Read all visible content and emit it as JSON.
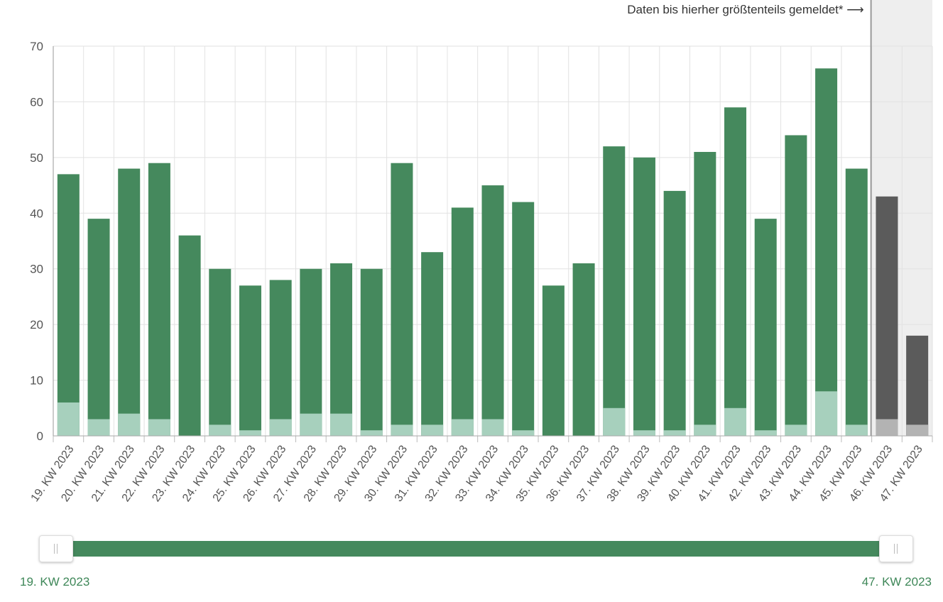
{
  "annotation": "Daten bis hierher größtenteils gemeldet* ⟶",
  "range": {
    "start": "19. KW 2023",
    "end": "47. KW 2023"
  },
  "colors": {
    "dark_green": "#45895d",
    "light_green": "#a7d0bd",
    "dark_gray": "#5b5b5b",
    "light_gray": "#b3b3b3",
    "shade": "#eeeeee",
    "grid": "#e2e2e2"
  },
  "chart_data": {
    "type": "bar",
    "stacked": true,
    "categories": [
      "19. KW 2023",
      "20. KW 2023",
      "21. KW 2023",
      "22. KW 2023",
      "23. KW 2023",
      "24. KW 2023",
      "25. KW 2023",
      "26. KW 2023",
      "27. KW 2023",
      "28. KW 2023",
      "29. KW 2023",
      "30. KW 2023",
      "31. KW 2023",
      "32. KW 2023",
      "33. KW 2023",
      "34. KW 2023",
      "35. KW 2023",
      "36. KW 2023",
      "37. KW 2023",
      "38. KW 2023",
      "39. KW 2023",
      "40. KW 2023",
      "41. KW 2023",
      "42. KW 2023",
      "43. KW 2023",
      "44. KW 2023",
      "45. KW 2023",
      "46. KW 2023",
      "47. KW 2023"
    ],
    "totals": [
      47,
      39,
      48,
      49,
      36,
      30,
      27,
      28,
      30,
      31,
      30,
      49,
      33,
      41,
      45,
      42,
      27,
      31,
      52,
      50,
      44,
      51,
      59,
      39,
      54,
      66,
      48,
      43,
      18
    ],
    "lower_values": [
      6,
      3,
      4,
      3,
      0,
      2,
      1,
      3,
      4,
      4,
      1,
      2,
      2,
      3,
      3,
      1,
      0,
      0,
      5,
      1,
      1,
      2,
      5,
      1,
      2,
      8,
      2,
      3,
      2
    ],
    "incomplete_from_index": 27,
    "ylim": [
      0,
      70
    ],
    "yticks": [
      0,
      10,
      20,
      30,
      40,
      50,
      60,
      70
    ],
    "grid": true
  }
}
